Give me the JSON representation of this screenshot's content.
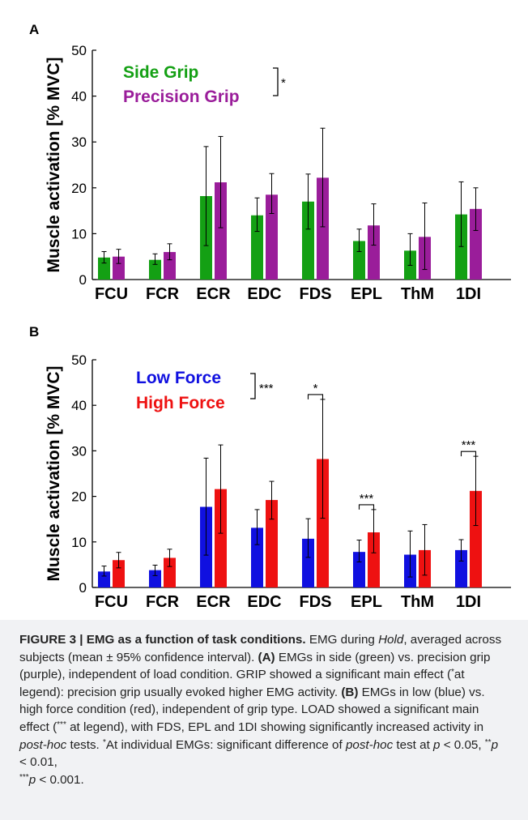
{
  "chart_data": [
    {
      "panel": "A",
      "type": "bar",
      "ylabel": "Muscle activation [% MVC]",
      "ylim": [
        0,
        50
      ],
      "yticks": [
        0,
        10,
        20,
        30,
        40,
        50
      ],
      "categories": [
        "FCU",
        "FCR",
        "ECR",
        "EDC",
        "FDS",
        "EPL",
        "ThM",
        "1DI"
      ],
      "series": [
        {
          "name": "Side Grip",
          "color": "#14a014",
          "values": [
            4.8,
            4.3,
            18.2,
            14.0,
            17.0,
            8.4,
            6.3,
            14.2
          ],
          "err_low": [
            3.6,
            3.3,
            7.4,
            10.5,
            11.0,
            6.1,
            3.1,
            7.2
          ],
          "err_high": [
            6.1,
            5.6,
            29.0,
            17.8,
            23.0,
            11.0,
            10.0,
            21.3
          ]
        },
        {
          "name": "Precision Grip",
          "color": "#9a1d9a",
          "values": [
            5.0,
            6.0,
            21.2,
            18.5,
            22.2,
            11.8,
            9.3,
            15.4
          ],
          "err_low": [
            3.5,
            4.3,
            11.3,
            14.4,
            11.5,
            7.5,
            2.2,
            10.7
          ],
          "err_high": [
            6.6,
            7.8,
            31.2,
            23.1,
            33.0,
            16.5,
            16.7,
            20.0
          ]
        }
      ],
      "legend_annotation": "*",
      "pair_annotations": []
    },
    {
      "panel": "B",
      "type": "bar",
      "ylabel": "Muscle activation [% MVC]",
      "ylim": [
        0,
        50
      ],
      "yticks": [
        0,
        10,
        20,
        30,
        40,
        50
      ],
      "categories": [
        "FCU",
        "FCR",
        "ECR",
        "EDC",
        "FDS",
        "EPL",
        "ThM",
        "1DI"
      ],
      "series": [
        {
          "name": "Low Force",
          "color": "#1010e0",
          "values": [
            3.5,
            3.8,
            17.7,
            13.1,
            10.7,
            7.8,
            7.2,
            8.2
          ],
          "err_low": [
            2.5,
            2.6,
            7.1,
            9.4,
            6.6,
            5.6,
            2.3,
            5.8
          ],
          "err_high": [
            4.7,
            4.9,
            28.4,
            17.1,
            15.1,
            10.4,
            12.4,
            10.5
          ]
        },
        {
          "name": "High Force",
          "color": "#ee1111",
          "values": [
            6.0,
            6.5,
            21.6,
            19.2,
            28.2,
            12.1,
            8.2,
            21.2
          ],
          "err_low": [
            4.3,
            4.6,
            11.9,
            15.0,
            15.2,
            7.6,
            2.7,
            13.6
          ],
          "err_high": [
            7.7,
            8.4,
            31.3,
            23.3,
            41.3,
            17.1,
            13.8,
            28.8
          ]
        }
      ],
      "legend_annotation": "***",
      "pair_annotations": [
        {
          "category": "FDS",
          "label": "*"
        },
        {
          "category": "EPL",
          "label": "***"
        },
        {
          "category": "1DI",
          "label": "***"
        }
      ]
    }
  ],
  "caption": {
    "figure_label": "FIGURE 3 | EMG as a function of task conditions.",
    "t1": " EMG during ",
    "hold": "Hold",
    "t2": ", averaged across subjects (mean ± 95% confidence interval). ",
    "a_label": "(A)",
    "t3": " EMGs in side (green) vs. precision grip (purple), independent of load condition. GRIP showed a significant main effect (",
    "sup1": "*",
    "t4": "at legend): precision grip usually evoked higher EMG activity. ",
    "b_label": "(B)",
    "t5": " EMGs in low (blue) vs. high force condition (red), independent of grip type. LOAD showed a significant main effect (",
    "sup2": "***",
    "t6": " at legend), with FDS, EPL and 1DI showing significantly increased activity in ",
    "posthoc1": "post-hoc",
    "t7": " tests. ",
    "sup3": "*",
    "t8": "At individual EMGs: significant difference of ",
    "posthoc2": "post-hoc",
    "t9": " test at ",
    "p1": "p",
    "t10": " < 0.05, ",
    "sup4": "**",
    "p2": "p",
    "t11": " < 0.01, ",
    "sup5": "***",
    "p3": "p",
    "t12": " < 0.001."
  }
}
